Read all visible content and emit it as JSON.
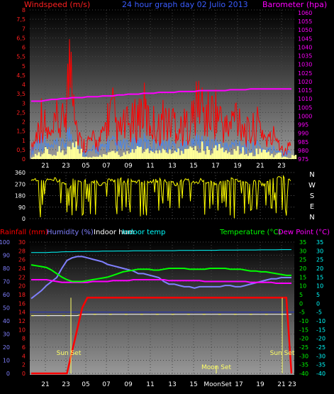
{
  "chart_data": [
    {
      "type": "line",
      "title": "24 hour graph day 02 Julio 2013",
      "left_axis_label": "Windspeed (m/s)",
      "right_axis_label": "Barometer (hpa)",
      "left_ticks": [
        "8",
        "7,5",
        "7",
        "6,5",
        "6",
        "5,5",
        "5",
        "4,5",
        "4",
        "3,5",
        "3",
        "2,5",
        "2",
        "1,5",
        "1",
        "0,5",
        "0"
      ],
      "right_ticks": [
        "1060",
        "1055",
        "1050",
        "1045",
        "1040",
        "1035",
        "1030",
        "1025",
        "1020",
        "1015",
        "1010",
        "1005",
        "1000",
        "995",
        "990",
        "985",
        "980",
        "975"
      ],
      "x_ticks": [
        "21",
        "23",
        "05",
        "07",
        "09",
        "11",
        "13",
        "15",
        "17",
        "19",
        "21",
        "23"
      ],
      "ylim_left": [
        0,
        8
      ],
      "ylim_right": [
        975,
        1060
      ],
      "series": [
        {
          "color": "#ff0000",
          "values": [
            0.5,
            1.4,
            2.6,
            1.6,
            1.2,
            2.2,
            1.9,
            3.7,
            6.8,
            1.6,
            0.8,
            1.0,
            1.1,
            0.9,
            1.3,
            2.4,
            2.8,
            1.5,
            1.9,
            2.0,
            2.1,
            2.6,
            3.0,
            2.2,
            2.1,
            1.8,
            2.5,
            2.0,
            2.4,
            1.8,
            1.9,
            2.2,
            2.6,
            3.6,
            2.5,
            2.6,
            2.9,
            2.5,
            1.8,
            1.9,
            2.7,
            2.5,
            1.6,
            1.5,
            2.0,
            1.9,
            1.2,
            1.1,
            1.6,
            0.7,
            0.4,
            1.2
          ]
        },
        {
          "color": "#4a86e8",
          "values": [
            0.4,
            0.9,
            1.1,
            0.8,
            0.6,
            0.8,
            0.7,
            1.3,
            1.5,
            0.7,
            0.4,
            0.4,
            0.5,
            0.6,
            0.6,
            0.9,
            0.9,
            0.7,
            0.8,
            0.7,
            0.8,
            0.9,
            1.0,
            0.8,
            0.8,
            0.7,
            0.8,
            0.8,
            0.8,
            0.7,
            0.7,
            0.8,
            0.9,
            1.1,
            0.9,
            0.8,
            0.9,
            0.8,
            0.7,
            0.7,
            0.9,
            0.9,
            0.7,
            0.6,
            0.7,
            0.7,
            0.5,
            0.5,
            0.6,
            0.4,
            0.3,
            0.5
          ]
        },
        {
          "color": "#ffff99",
          "values": [
            0.2,
            0.3,
            0.6,
            0.4,
            0.2,
            0.5,
            0.4,
            0.6,
            0.9,
            0.4,
            0.1,
            0.1,
            0.2,
            0.2,
            0.3,
            0.5,
            0.6,
            0.3,
            0.4,
            0.4,
            0.5,
            0.5,
            0.6,
            0.4,
            0.4,
            0.4,
            0.5,
            0.4,
            0.5,
            0.4,
            0.4,
            0.5,
            0.5,
            0.7,
            0.5,
            0.5,
            0.6,
            0.5,
            0.4,
            0.4,
            0.5,
            0.5,
            0.4,
            0.3,
            0.4,
            0.4,
            0.3,
            0.2,
            0.3,
            0.1,
            0.1,
            0.2
          ]
        },
        {
          "color": "#ff00ff",
          "values": [
            1008,
            1008,
            1008,
            1008.5,
            1009,
            1009,
            1009.5,
            1009.5,
            1010,
            1010,
            1010,
            1010.5,
            1010.5,
            1010.5,
            1011,
            1011,
            1011,
            1011.5,
            1011.5,
            1012,
            1012,
            1012,
            1012.5,
            1012.5,
            1012.5,
            1013,
            1013,
            1013,
            1013,
            1013.5,
            1013.5,
            1013.5,
            1013.5,
            1014,
            1014,
            1014,
            1014,
            1014,
            1014,
            1014.5,
            1014.5,
            1014.5,
            1014.5,
            1015,
            1015,
            1015,
            1015,
            1015,
            1015,
            1015,
            1015,
            1015
          ]
        }
      ]
    },
    {
      "type": "scatter",
      "y_ticks": [
        "360",
        "270",
        "180",
        "90",
        "0"
      ],
      "compass_labels": [
        "N",
        "W",
        "S",
        "E",
        "N"
      ],
      "x_ticks": [
        "21",
        "23",
        "05",
        "07",
        "09",
        "11",
        "13",
        "15",
        "17",
        "19",
        "21",
        "23"
      ],
      "ylim": [
        0,
        360
      ],
      "series": [
        {
          "color": "#ffff00",
          "values": [
            310,
            300,
            295,
            300,
            310,
            290,
            270,
            250,
            300,
            290,
            300,
            280,
            290,
            270,
            280,
            300,
            290,
            310,
            290,
            300,
            280,
            290,
            300,
            285,
            295,
            300,
            290,
            280,
            270,
            300,
            310,
            290,
            280,
            300,
            290,
            280,
            270,
            300,
            290,
            310,
            300,
            290,
            280,
            300,
            290,
            270,
            300,
            310,
            320,
            330,
            300,
            290
          ]
        }
      ]
    },
    {
      "type": "line",
      "legend": [
        {
          "label": "Rainfall (mm)",
          "color": "#ff0000"
        },
        {
          "label": "Humidity (%)",
          "color": "#8080ff"
        },
        {
          "label": "Indoor hum",
          "color": "#ffffff"
        },
        {
          "label": "Indoor temp",
          "color": "#00ffff"
        },
        {
          "label": "Temperature (°C)",
          "color": "#00ff00"
        },
        {
          "label": "Dew Point (°C)",
          "color": "#ff00ff"
        }
      ],
      "humidity_ticks": [
        "100",
        "90",
        "80",
        "70",
        "60",
        "50",
        "40",
        "30",
        "20",
        "10",
        "0"
      ],
      "rain_ticks": [
        "30",
        "28",
        "26",
        "24",
        "22",
        "20",
        "18",
        "16",
        "14",
        "12",
        "10",
        "8",
        "6",
        "4",
        "2",
        "0"
      ],
      "temp_ticks": [
        "35",
        "30",
        "25",
        "20",
        "15",
        "10",
        "5",
        "0",
        "-5",
        "-10",
        "-15",
        "-20",
        "-25",
        "-30",
        "-35",
        "-40"
      ],
      "x_ticks": [
        "21",
        "23",
        "05",
        "07",
        "09",
        "11",
        "13",
        "15",
        "MoonSet",
        "17",
        "19",
        "21",
        "23"
      ],
      "annotations": [
        "Sun Set",
        "Moon Set",
        "Sun Set"
      ],
      "ylim_humidity": [
        0,
        100
      ],
      "ylim_rain": [
        0,
        30
      ],
      "ylim_temp": [
        -40,
        35
      ],
      "series": [
        {
          "name": "Humidity (%)",
          "color": "#8080ff",
          "values": [
            57,
            60,
            63,
            67,
            70,
            73,
            80,
            86,
            88,
            89,
            89,
            88,
            87,
            86,
            85,
            83,
            82,
            81,
            80,
            79,
            78,
            76,
            76,
            75,
            74,
            73,
            70,
            68,
            68,
            67,
            66,
            66,
            65,
            66,
            66,
            66,
            66,
            66,
            67,
            67,
            66,
            66,
            67,
            68,
            69,
            70,
            71,
            72,
            72,
            73,
            73,
            73
          ]
        },
        {
          "name": "Indoor temp",
          "color": "#00ffff",
          "values": [
            29,
            29,
            29,
            29,
            29.2,
            29.2,
            29.4,
            29.5,
            29.5,
            29.6,
            29.6,
            29.7,
            29.7,
            29.7,
            29.8,
            29.8,
            29.8,
            29.9,
            29.9,
            29.9,
            30,
            30,
            30,
            30,
            30,
            30.1,
            30.1,
            30.1,
            30.1,
            30.2,
            30.2,
            30.2,
            30.2,
            30.3,
            30.3,
            30.3,
            30.3,
            30.4,
            30.4,
            30.4,
            30.4,
            30.5,
            30.5,
            30.5,
            30.5,
            30.6,
            30.6,
            30.6,
            30.6,
            30.7,
            30.7,
            30.7
          ]
        },
        {
          "name": "Temperature (°C)",
          "color": "#00ff00",
          "values": [
            22,
            21.5,
            21,
            20.5,
            19,
            17,
            15,
            13.5,
            12.5,
            12.5,
            12.5,
            13,
            13.5,
            14,
            14.5,
            15,
            16,
            17,
            18,
            18.5,
            19,
            19.5,
            19.5,
            19.5,
            19,
            19,
            19.5,
            20,
            20,
            20,
            20,
            19.5,
            19.5,
            19.5,
            19.5,
            20,
            20,
            20,
            20,
            19.5,
            19.5,
            19.5,
            19,
            18.5,
            18.5,
            18,
            18,
            17.5,
            17,
            16.5,
            16,
            16
          ]
        },
        {
          "name": "Dew Point (°C)",
          "color": "#ff00ff",
          "values": [
            13.5,
            13.5,
            13.5,
            13.5,
            13,
            12.5,
            12,
            12,
            12,
            12,
            12,
            12,
            12.5,
            12.5,
            12.5,
            12.5,
            13,
            13,
            13,
            13,
            13.5,
            13.5,
            13.5,
            13.5,
            13.5,
            13.5,
            13.5,
            13,
            13,
            13,
            13,
            13,
            13,
            13,
            12.5,
            12.5,
            12.5,
            12.5,
            12.5,
            12.5,
            12.5,
            12.5,
            12.5,
            12,
            12,
            12,
            12,
            12,
            11.5,
            11.5,
            11.5,
            11.5
          ]
        },
        {
          "name": "Rainfall (mm)",
          "color": "#ff0000",
          "values": [
            0,
            0,
            0,
            0,
            0,
            0,
            0,
            0,
            5,
            10,
            15,
            17.3,
            17.3,
            17.3,
            17.3,
            17.3,
            17.3,
            17.3,
            17.3,
            17.3,
            17.3,
            17.3,
            17.3,
            17.3,
            17.3,
            17.3,
            17.3,
            17.3,
            17.3,
            17.3,
            17.3,
            17.3,
            17.3,
            17.3,
            17.3,
            17.3,
            17.3,
            17.3,
            17.3,
            17.3,
            17.3,
            17.3,
            17.3,
            17.3,
            17.3,
            17.3,
            17.3,
            17.3,
            17.3,
            17.3,
            17.3,
            0
          ]
        },
        {
          "name": "Indoor hum",
          "color": "#ffffff",
          "values": [
            44,
            44,
            44,
            44,
            44,
            44,
            44,
            44,
            44,
            44,
            45,
            45,
            45,
            45,
            45,
            45,
            45,
            45,
            45,
            45,
            45,
            45,
            45,
            45,
            45,
            45,
            45,
            45,
            45,
            45,
            45,
            45,
            45,
            45,
            45,
            45,
            45,
            45,
            45,
            45,
            45,
            45,
            45,
            45,
            45,
            45,
            45,
            45,
            45,
            45,
            45,
            45
          ]
        }
      ]
    }
  ]
}
